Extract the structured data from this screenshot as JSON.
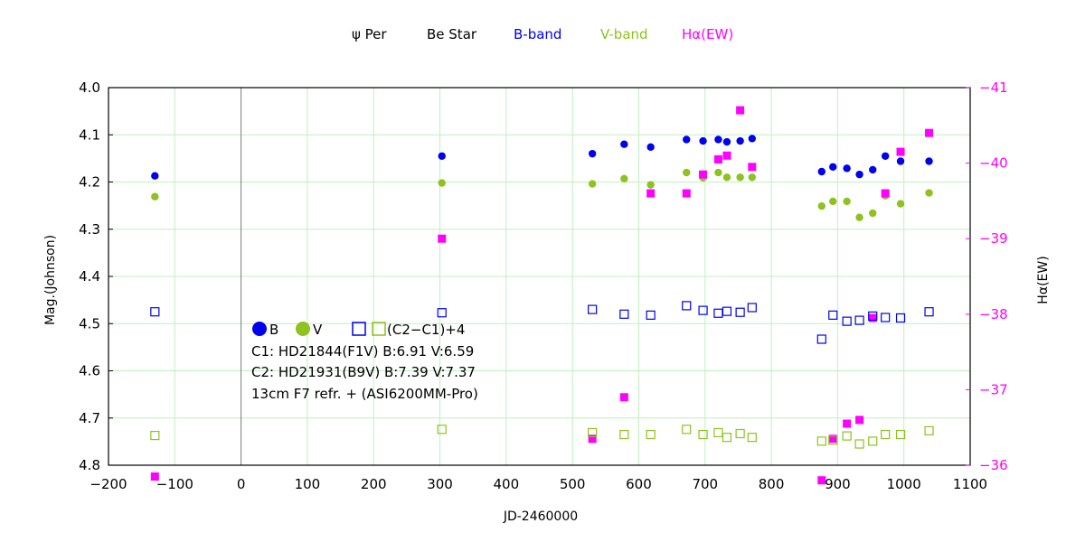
{
  "chart_data": {
    "type": "scatter",
    "title_parts": [
      {
        "text": "ψ Per",
        "color": "#000000"
      },
      {
        "text": "Be Star",
        "color": "#000000"
      },
      {
        "text": "B-band",
        "color": "#0000ee"
      },
      {
        "text": "V-band",
        "color": "#8dc21f"
      },
      {
        "text": "Hα(EW)",
        "color": "#ff00ff"
      }
    ],
    "xlabel": "JD-2460000",
    "ylabel": "Mag.(Johnson)",
    "y2label": "Hα(EW)",
    "xlim": [
      -200,
      1100
    ],
    "ylim": [
      4.0,
      4.8
    ],
    "y2lim": [
      -41,
      -36
    ],
    "x_ticks": [
      "−200",
      "−100",
      "0",
      "100",
      "200",
      "300",
      "400",
      "500",
      "600",
      "700",
      "800",
      "900",
      "1000",
      "1100"
    ],
    "y_ticks": [
      "4.0",
      "4.1",
      "4.2",
      "4.3",
      "4.4",
      "4.5",
      "4.6",
      "4.7",
      "4.8"
    ],
    "y2_ticks": [
      "−41",
      "−40",
      "−39",
      "−38",
      "−37",
      "−36"
    ],
    "grid": true,
    "colors": {
      "B": "#0000ee",
      "V": "#8dc21f",
      "Ha": "#ff00ff",
      "grid": "#bff0bf"
    },
    "legend": {
      "B": "B",
      "V": "V",
      "comp": "(C2−C1)+4",
      "lines": [
        "C1: HD21844(F1V)  B:6.91 V:6.59",
        "C2: HD21931(B9V)  B:7.39 V:7.37",
        "13cm  F7  refr.  + (ASI6200MM-Pro)"
      ]
    },
    "series": [
      {
        "name": "B-band",
        "marker": "filled-circle",
        "axis": "left",
        "points": [
          [
            -130,
            4.187
          ],
          [
            303,
            4.145
          ],
          [
            530,
            4.14
          ],
          [
            578,
            4.12
          ],
          [
            618,
            4.126
          ],
          [
            672,
            4.11
          ],
          [
            697,
            4.113
          ],
          [
            720,
            4.11
          ],
          [
            733,
            4.115
          ],
          [
            753,
            4.113
          ],
          [
            771,
            4.108
          ],
          [
            876,
            4.178
          ],
          [
            893,
            4.168
          ],
          [
            914,
            4.171
          ],
          [
            933,
            4.184
          ],
          [
            953,
            4.174
          ],
          [
            972,
            4.145
          ],
          [
            995,
            4.156
          ],
          [
            1038,
            4.156
          ]
        ]
      },
      {
        "name": "V-band",
        "marker": "filled-circle",
        "axis": "left",
        "points": [
          [
            -130,
            4.231
          ],
          [
            303,
            4.202
          ],
          [
            530,
            4.204
          ],
          [
            578,
            4.193
          ],
          [
            618,
            4.206
          ],
          [
            672,
            4.18
          ],
          [
            697,
            4.191
          ],
          [
            720,
            4.18
          ],
          [
            733,
            4.19
          ],
          [
            753,
            4.19
          ],
          [
            771,
            4.19
          ],
          [
            876,
            4.251
          ],
          [
            893,
            4.241
          ],
          [
            914,
            4.241
          ],
          [
            933,
            4.275
          ],
          [
            953,
            4.266
          ],
          [
            972,
            4.229
          ],
          [
            995,
            4.246
          ],
          [
            1038,
            4.223
          ]
        ]
      },
      {
        "name": "Hα(EW)",
        "marker": "filled-square",
        "axis": "right",
        "points": [
          [
            -130,
            -35.85
          ],
          [
            303,
            -39.0
          ],
          [
            530,
            -36.35
          ],
          [
            578,
            -36.9
          ],
          [
            618,
            -39.6
          ],
          [
            672,
            -39.6
          ],
          [
            697,
            -39.85
          ],
          [
            720,
            -40.05
          ],
          [
            733,
            -40.1
          ],
          [
            753,
            -40.7
          ],
          [
            771,
            -39.95
          ],
          [
            876,
            -35.8
          ],
          [
            893,
            -36.35
          ],
          [
            914,
            -36.55
          ],
          [
            933,
            -36.6
          ],
          [
            953,
            -37.95
          ],
          [
            972,
            -39.6
          ],
          [
            995,
            -40.15
          ],
          [
            1038,
            -40.4
          ]
        ]
      },
      {
        "name": "(C2−C1)+4 B",
        "marker": "open-square",
        "axis": "left",
        "points": [
          [
            -130,
            4.475
          ],
          [
            303,
            4.477
          ],
          [
            530,
            4.47
          ],
          [
            578,
            4.48
          ],
          [
            618,
            4.482
          ],
          [
            672,
            4.462
          ],
          [
            697,
            4.472
          ],
          [
            720,
            4.478
          ],
          [
            733,
            4.474
          ],
          [
            753,
            4.476
          ],
          [
            771,
            4.466
          ],
          [
            876,
            4.533
          ],
          [
            893,
            4.482
          ],
          [
            914,
            4.495
          ],
          [
            933,
            4.493
          ],
          [
            953,
            4.484
          ],
          [
            972,
            4.487
          ],
          [
            995,
            4.488
          ],
          [
            1038,
            4.475
          ]
        ]
      },
      {
        "name": "(C2−C1)+4 V",
        "marker": "open-square",
        "axis": "left",
        "points": [
          [
            -130,
            4.737
          ],
          [
            303,
            4.724
          ],
          [
            530,
            4.731
          ],
          [
            578,
            4.735
          ],
          [
            618,
            4.735
          ],
          [
            672,
            4.724
          ],
          [
            697,
            4.735
          ],
          [
            720,
            4.731
          ],
          [
            733,
            4.741
          ],
          [
            753,
            4.733
          ],
          [
            771,
            4.741
          ],
          [
            876,
            4.749
          ],
          [
            893,
            4.747
          ],
          [
            914,
            4.738
          ],
          [
            933,
            4.755
          ],
          [
            953,
            4.749
          ],
          [
            972,
            4.735
          ],
          [
            995,
            4.735
          ],
          [
            1038,
            4.727
          ]
        ]
      }
    ]
  }
}
